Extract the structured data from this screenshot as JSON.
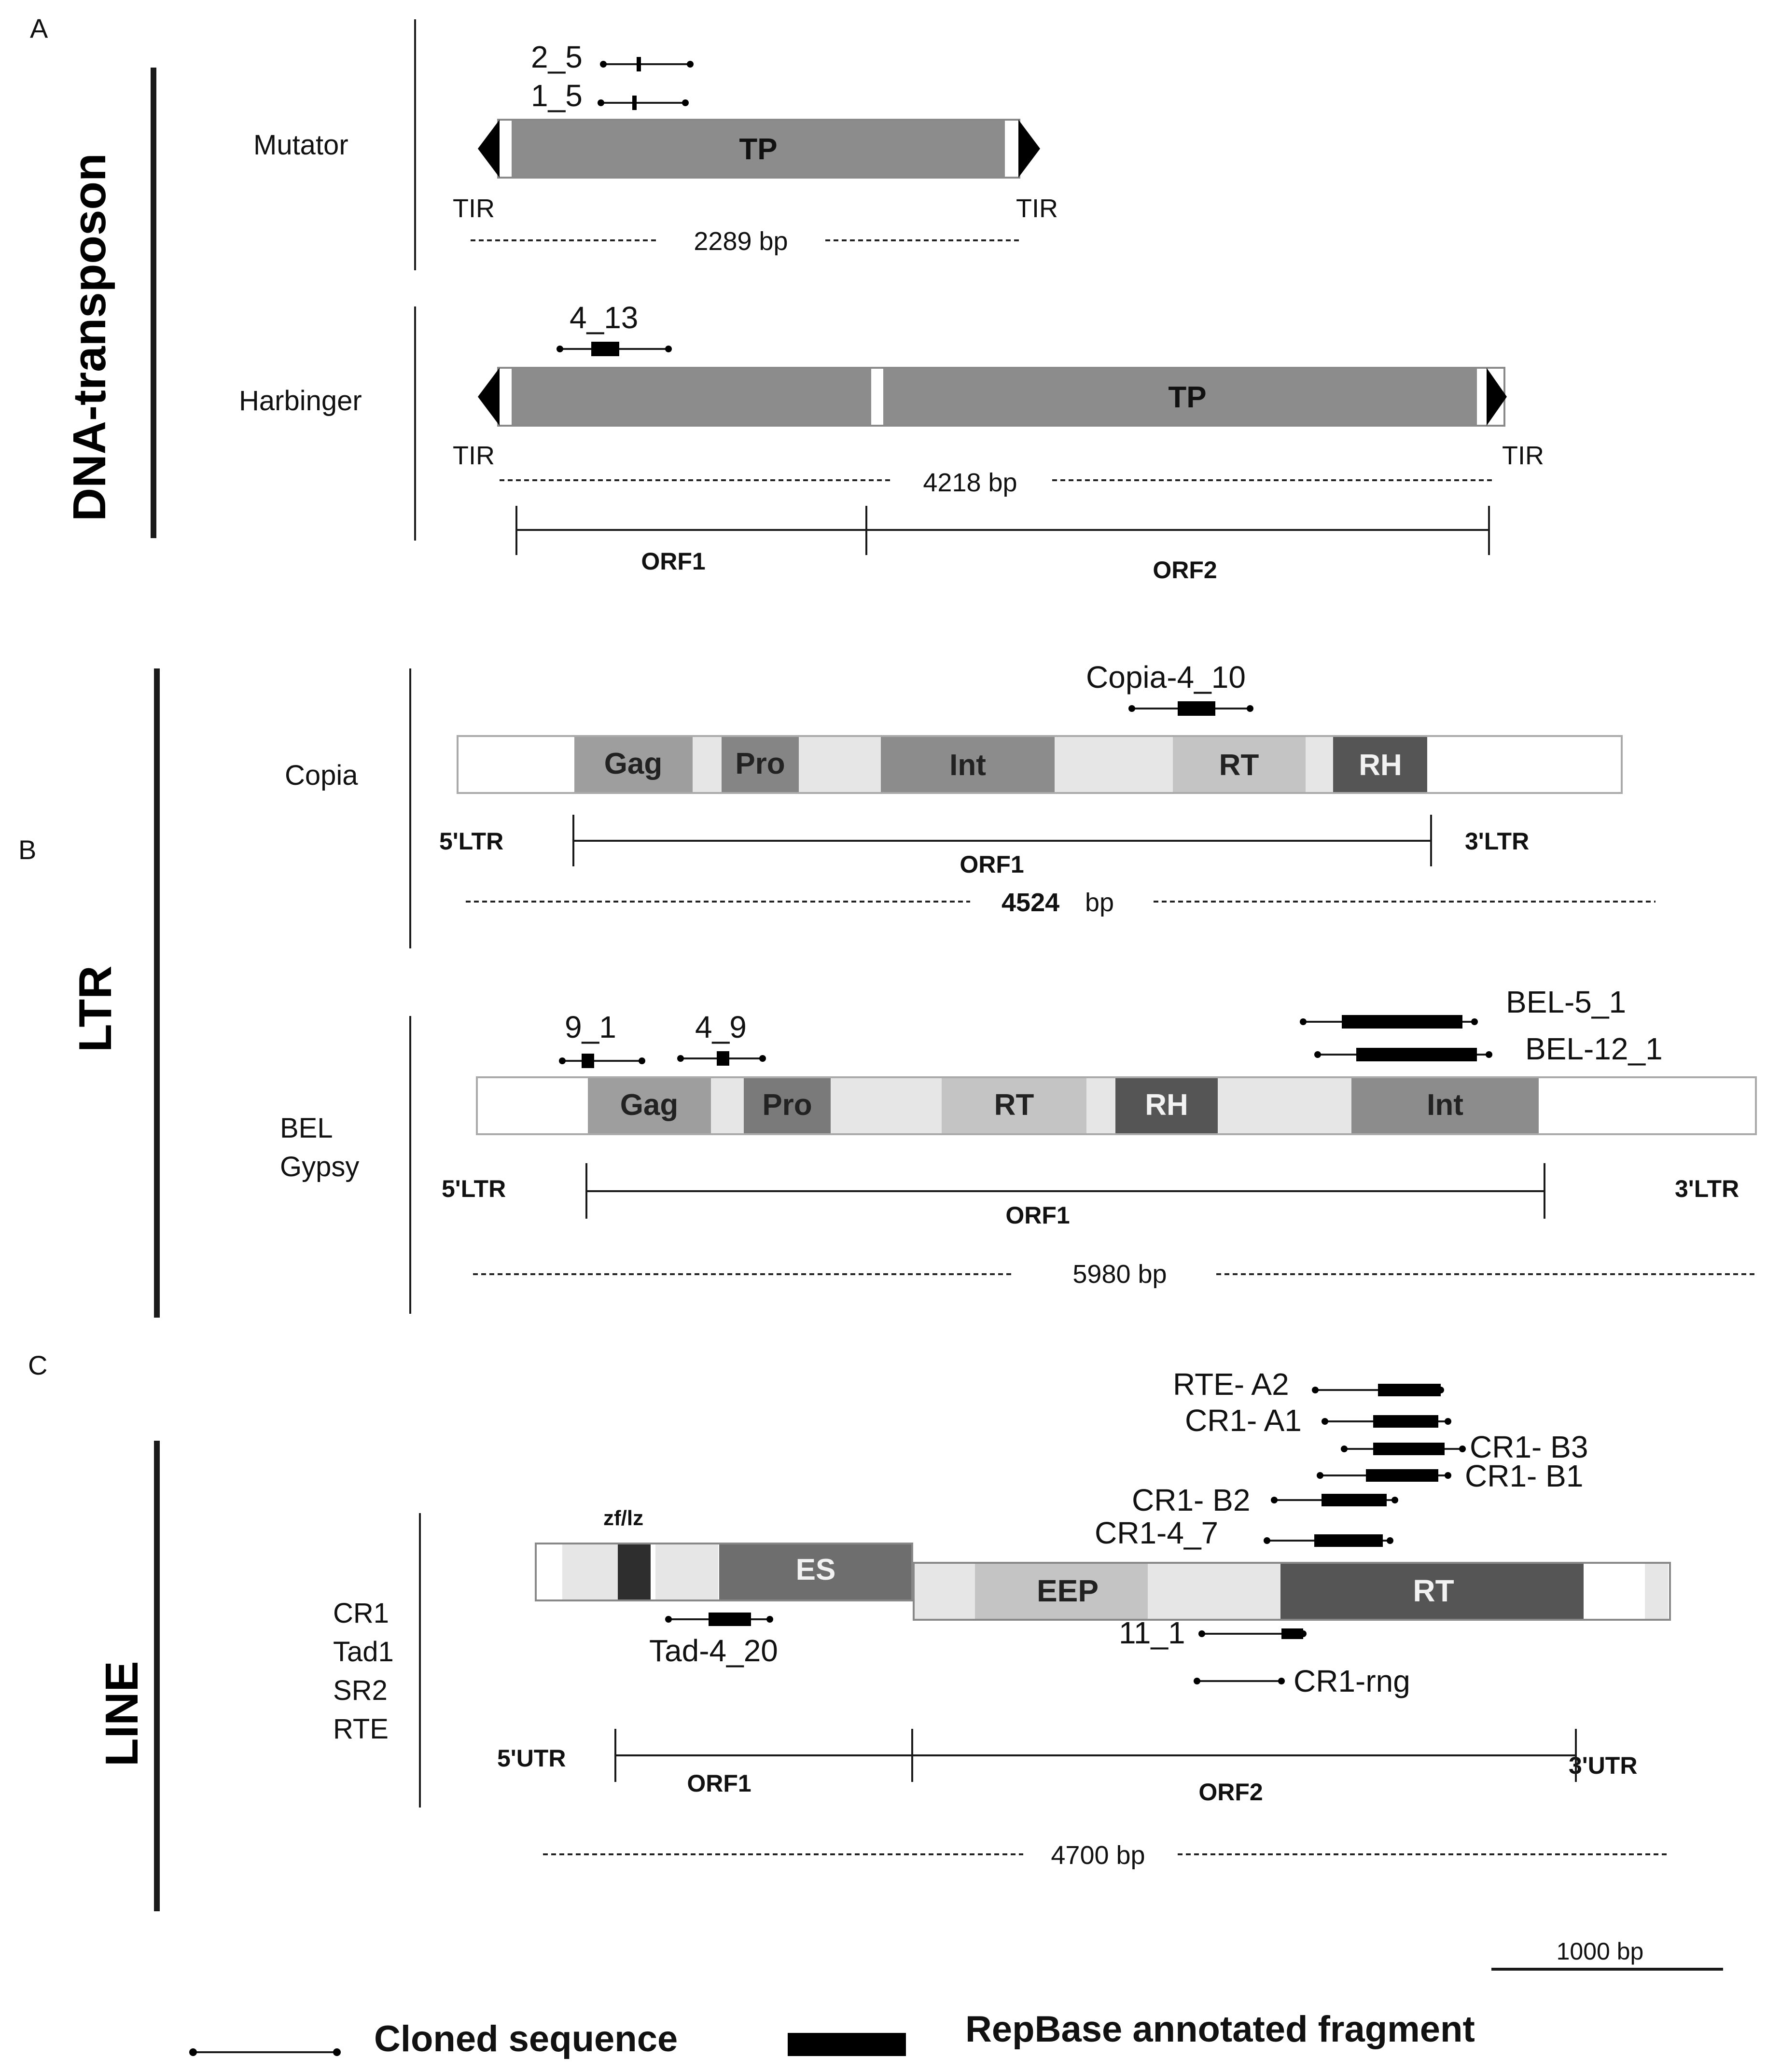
{
  "colors": {
    "tp_fill": "#8c8c8c",
    "white": "#ffffff",
    "light": "#e6e6e6",
    "mid_light": "#c4c4c4",
    "mid": "#9e9e9e",
    "mid_dark": "#7a7a7a",
    "pro": "#858585",
    "dark": "#555555",
    "very_dark": "#2e2e2e",
    "es": "#6e6e6e"
  },
  "panel_a": {
    "letter": "A",
    "class_label": "DNA-transposon",
    "mutator": {
      "name": "Mutator",
      "domain": "TP",
      "tir_left": "TIR",
      "tir_right": "TIR",
      "length": "2289 bp",
      "clones": [
        "2_5",
        "1_5"
      ]
    },
    "harbinger": {
      "name": "Harbinger",
      "domain": "TP",
      "tir_left": "TIR",
      "tir_right": "TIR",
      "length": "4218  bp",
      "clone": "4_13",
      "orfs": [
        "ORF1",
        "ORF2"
      ]
    }
  },
  "panel_b": {
    "letter": "B",
    "class_label": "LTR",
    "copia": {
      "name": "Copia",
      "domains": [
        "Gag",
        "Pro",
        "Int",
        "RT",
        "RH"
      ],
      "ltr_left": "5'LTR",
      "ltr_right": "3'LTR",
      "orf": "ORF1",
      "length_num": "4524",
      "length_unit": "bp",
      "clone": "Copia-4_10"
    },
    "bel": {
      "name_line1": "BEL",
      "name_line2": "Gypsy",
      "domains": [
        "Gag",
        "Pro",
        "RT",
        "RH",
        "Int"
      ],
      "ltr_left": "5'LTR",
      "ltr_right": "3'LTR",
      "orf": "ORF1",
      "length": "5980   bp",
      "clones": [
        "9_1",
        "4_9",
        "BEL-5_1",
        "BEL-12_1"
      ]
    }
  },
  "panel_c": {
    "letter": "C",
    "class_label": "LINE",
    "family_labels": [
      "CR1",
      "Tad1",
      "SR2",
      "RTE"
    ],
    "zf_label": "zf/lz",
    "domains": [
      "ES",
      "EEP",
      "RT"
    ],
    "utr_left": "5'UTR",
    "utr_right": "3'UTR",
    "orfs": [
      "ORF1",
      "ORF2"
    ],
    "length": "4700  bp",
    "clones": [
      "RTE- A2",
      "CR1- A1",
      "CR1- B3",
      "CR1- B1",
      "CR1- B2",
      "CR1-4_7",
      "Tad-4_20",
      "11_1",
      "CR1-rng"
    ]
  },
  "scale_bar": {
    "label": "1000 bp"
  },
  "legend": {
    "cloned": "Cloned sequence",
    "repbase": "RepBase annotated fragment"
  }
}
